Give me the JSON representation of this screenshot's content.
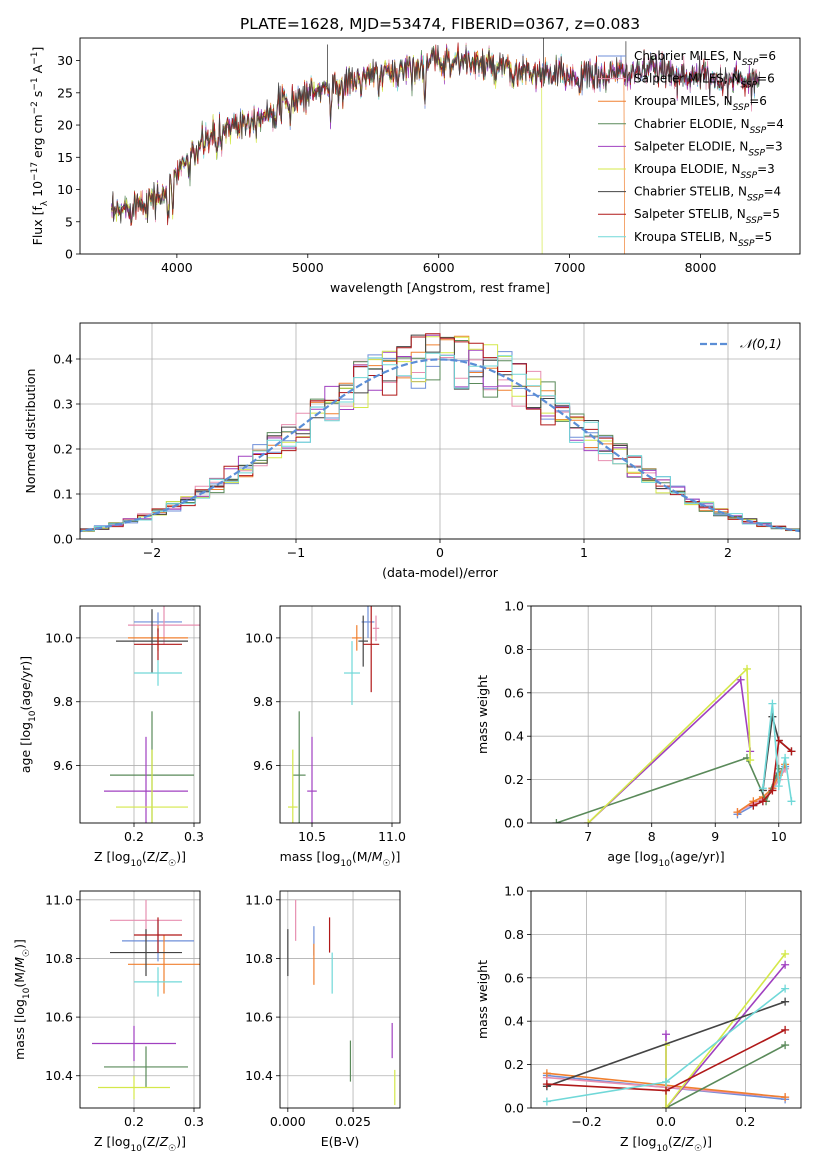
{
  "figure_title": "PLATE=1628, MJD=53474, FIBERID=0367, z=0.083",
  "chart_data": [
    {
      "id": "spectrum",
      "type": "line",
      "title": "PLATE=1628, MJD=53474, FIBERID=0367, z=0.083",
      "xlabel": "wavelength [Angstrom, rest frame]",
      "ylabel": "Flux [f_λ 10^-17 erg cm^-2 s^-1 A^-1]",
      "xlim": [
        3260,
        8760
      ],
      "ylim": [
        0,
        33.5
      ],
      "xticks": [
        4000,
        5000,
        6000,
        7000,
        8000
      ],
      "yticks": [
        0,
        5,
        10,
        15,
        20,
        25,
        30
      ],
      "grid": false,
      "legend": "top-right",
      "series": [
        {
          "name": "Chabrier MILES, N_SSP=6",
          "color": "#6f8fd9"
        },
        {
          "name": "Salpeter MILES, N_SSP=6",
          "color": "#e78fb0"
        },
        {
          "name": "Kroupa MILES, N_SSP=6",
          "color": "#f08030"
        },
        {
          "name": "Chabrier ELODIE, N_SSP=4",
          "color": "#5a8a5a"
        },
        {
          "name": "Salpeter ELODIE, N_SSP=3",
          "color": "#a040c0"
        },
        {
          "name": "Kroupa ELODIE, N_SSP=3",
          "color": "#d4e84a"
        },
        {
          "name": "Chabrier STELIB, N_SSP=4",
          "color": "#444444"
        },
        {
          "name": "Salpeter STELIB, N_SSP=5",
          "color": "#b01818"
        },
        {
          "name": "Kroupa STELIB, N_SSP=5",
          "color": "#70d8d8"
        }
      ],
      "continuum": {
        "x": [
          3500,
          3600,
          3700,
          3800,
          3900,
          3950,
          4000,
          4100,
          4200,
          4300,
          4400,
          4600,
          4800,
          5000,
          5200,
          5400,
          5600,
          5800,
          6000,
          6200,
          6400,
          6600,
          6800,
          7000,
          7200,
          7400,
          7600,
          7800,
          8000,
          8200,
          8400
        ],
        "y": [
          6,
          7,
          8,
          8.5,
          9,
          11,
          13,
          15,
          17,
          19,
          20,
          21,
          23,
          25,
          26,
          27,
          28,
          29,
          30,
          30,
          29,
          28,
          28,
          27.5,
          27.5,
          28,
          28.5,
          28,
          27.5,
          27,
          27
        ]
      },
      "absorption_features": [
        {
          "x": 3934,
          "depth": 6
        },
        {
          "x": 3969,
          "depth": 5
        },
        {
          "x": 4101,
          "depth": 3
        },
        {
          "x": 4304,
          "depth": 4
        },
        {
          "x": 4340,
          "depth": 3
        },
        {
          "x": 4861,
          "depth": 3
        },
        {
          "x": 5175,
          "depth": 4
        },
        {
          "x": 5270,
          "depth": 2
        },
        {
          "x": 5893,
          "depth": 6
        },
        {
          "x": 6563,
          "depth": 2
        },
        {
          "x": 6870,
          "depth": 2
        }
      ]
    },
    {
      "id": "residuals",
      "type": "bar",
      "xlabel": "(data-model)/error",
      "ylabel": "Normed distribution",
      "xlim": [
        -2.5,
        2.5
      ],
      "ylim": [
        0,
        0.48
      ],
      "xticks": [
        -2,
        -1,
        0,
        1,
        2
      ],
      "yticks": [
        0.0,
        0.1,
        0.2,
        0.3,
        0.4
      ],
      "grid": true,
      "legend": "top-right",
      "gaussian_label": "𝒩(0,1)",
      "gaussian": {
        "mu": 0,
        "sigma": 1,
        "color": "#5b8ed6"
      },
      "bin_width": 0.1,
      "series_colors": [
        "#6f8fd9",
        "#e78fb0",
        "#f08030",
        "#5a8a5a",
        "#a040c0",
        "#d4e84a",
        "#444444",
        "#b01818",
        "#70d8d8"
      ]
    },
    {
      "id": "age-vs-Z",
      "type": "scatter",
      "xlabel": "Z [log10(Z/Z☉)]",
      "ylabel": "age [log10(age/yr)]",
      "xlim": [
        0.11,
        0.31
      ],
      "ylim": [
        9.42,
        10.1
      ],
      "xticks": [
        0.2,
        0.3
      ],
      "yticks": [
        9.6,
        9.8,
        10.0
      ],
      "grid": true,
      "points": [
        {
          "x": 0.24,
          "y": 10.05,
          "xerr": 0.04,
          "yerr": 0.03,
          "color": "#6f8fd9"
        },
        {
          "x": 0.25,
          "y": 10.04,
          "xerr": 0.06,
          "yerr": 0.06,
          "color": "#e78fb0"
        },
        {
          "x": 0.24,
          "y": 10.0,
          "xerr": 0.05,
          "yerr": 0.04,
          "color": "#f08030"
        },
        {
          "x": 0.23,
          "y": 9.57,
          "xerr": 0.07,
          "yerr": 0.2,
          "color": "#5a8a5a"
        },
        {
          "x": 0.22,
          "y": 9.52,
          "xerr": 0.07,
          "yerr": 0.17,
          "color": "#a040c0"
        },
        {
          "x": 0.23,
          "y": 9.47,
          "xerr": 0.06,
          "yerr": 0.18,
          "color": "#d4e84a"
        },
        {
          "x": 0.23,
          "y": 9.99,
          "xerr": 0.06,
          "yerr": 0.1,
          "color": "#444444"
        },
        {
          "x": 0.24,
          "y": 9.98,
          "xerr": 0.04,
          "yerr": 0.05,
          "color": "#b01818"
        },
        {
          "x": 0.24,
          "y": 9.89,
          "xerr": 0.04,
          "yerr": 0.04,
          "color": "#70d8d8"
        }
      ]
    },
    {
      "id": "age-vs-mass",
      "type": "scatter",
      "xlabel": "mass [log10(M/M☉)]",
      "ylabel": "",
      "xlim": [
        10.3,
        11.05
      ],
      "ylim": [
        9.42,
        10.1
      ],
      "xticks": [
        10.5,
        11.0
      ],
      "yticks": [
        9.6,
        9.8,
        10.0
      ],
      "grid": true,
      "points": [
        {
          "x": 10.85,
          "y": 10.05,
          "xerr": 0.04,
          "yerr": 0.05,
          "color": "#6f8fd9"
        },
        {
          "x": 10.9,
          "y": 10.03,
          "xerr": 0.02,
          "yerr": 0.04,
          "color": "#e78fb0"
        },
        {
          "x": 10.78,
          "y": 10.0,
          "xerr": 0.03,
          "yerr": 0.04,
          "color": "#f08030"
        },
        {
          "x": 10.42,
          "y": 9.57,
          "xerr": 0.04,
          "yerr": 0.2,
          "color": "#5a8a5a"
        },
        {
          "x": 10.5,
          "y": 9.52,
          "xerr": 0.03,
          "yerr": 0.17,
          "color": "#a040c0"
        },
        {
          "x": 10.38,
          "y": 9.47,
          "xerr": 0.03,
          "yerr": 0.18,
          "color": "#d4e84a"
        },
        {
          "x": 10.82,
          "y": 9.99,
          "xerr": 0.03,
          "yerr": 0.08,
          "color": "#444444"
        },
        {
          "x": 10.87,
          "y": 9.98,
          "xerr": 0.05,
          "yerr": 0.15,
          "color": "#b01818"
        },
        {
          "x": 10.75,
          "y": 9.89,
          "xerr": 0.05,
          "yerr": 0.1,
          "color": "#70d8d8"
        }
      ]
    },
    {
      "id": "mass-weight-vs-age",
      "type": "line",
      "xlabel": "age [log10(age/yr)]",
      "ylabel": "mass weight",
      "xlim": [
        6.1,
        10.35
      ],
      "ylim": [
        0,
        1
      ],
      "xticks": [
        7,
        8,
        9,
        10
      ],
      "yticks": [
        0.0,
        0.2,
        0.4,
        0.6,
        0.8,
        1.0
      ],
      "grid": true,
      "series": [
        {
          "color": "#6f8fd9",
          "x": [
            9.35,
            9.6,
            9.75,
            9.9,
            10.0,
            10.1
          ],
          "y": [
            0.04,
            0.08,
            0.1,
            0.16,
            0.23,
            0.26
          ]
        },
        {
          "color": "#e78fb0",
          "x": [
            9.35,
            9.6,
            9.75,
            9.9,
            10.0,
            10.1
          ],
          "y": [
            0.05,
            0.09,
            0.11,
            0.15,
            0.2,
            0.25
          ]
        },
        {
          "color": "#f08030",
          "x": [
            9.35,
            9.6,
            9.75,
            9.9,
            10.0,
            10.1
          ],
          "y": [
            0.05,
            0.1,
            0.12,
            0.16,
            0.22,
            0.27
          ]
        },
        {
          "color": "#5a8a5a",
          "x": [
            6.5,
            9.5,
            9.8,
            10.0
          ],
          "y": [
            0.0,
            0.3,
            0.1,
            0.25
          ]
        },
        {
          "color": "#a040c0",
          "x": [
            7.0,
            9.4,
            9.55
          ],
          "y": [
            0.0,
            0.66,
            0.33
          ]
        },
        {
          "color": "#d4e84a",
          "x": [
            7.0,
            9.5,
            9.55
          ],
          "y": [
            0.0,
            0.71,
            0.29
          ]
        },
        {
          "color": "#444444",
          "x": [
            9.75,
            9.9,
            10.0,
            10.2
          ],
          "y": [
            0.15,
            0.49,
            0.38,
            0.33
          ]
        },
        {
          "color": "#b01818",
          "x": [
            9.6,
            9.75,
            9.9,
            10.0,
            10.2
          ],
          "y": [
            0.08,
            0.1,
            0.15,
            0.38,
            0.33
          ]
        },
        {
          "color": "#70d8d8",
          "x": [
            9.75,
            9.9,
            10.0,
            10.1,
            10.2
          ],
          "y": [
            0.16,
            0.55,
            0.17,
            0.3,
            0.1
          ]
        }
      ]
    },
    {
      "id": "mass-vs-Z",
      "type": "scatter",
      "xlabel": "Z [log10(Z/Z☉)]",
      "ylabel": "mass [log10(M/M☉)]",
      "xlim": [
        0.11,
        0.31
      ],
      "ylim": [
        10.29,
        11.03
      ],
      "xticks": [
        0.2,
        0.3
      ],
      "yticks": [
        10.4,
        10.6,
        10.8,
        11.0
      ],
      "grid": true,
      "points": [
        {
          "x": 0.24,
          "y": 10.86,
          "xerr": 0.06,
          "yerr": 0.07,
          "color": "#6f8fd9"
        },
        {
          "x": 0.22,
          "y": 10.93,
          "xerr": 0.06,
          "yerr": 0.07,
          "color": "#e78fb0"
        },
        {
          "x": 0.25,
          "y": 10.78,
          "xerr": 0.06,
          "yerr": 0.1,
          "color": "#f08030"
        },
        {
          "x": 0.22,
          "y": 10.43,
          "xerr": 0.07,
          "yerr": 0.07,
          "color": "#5a8a5a"
        },
        {
          "x": 0.2,
          "y": 10.51,
          "xerr": 0.07,
          "yerr": 0.06,
          "color": "#a040c0"
        },
        {
          "x": 0.2,
          "y": 10.36,
          "xerr": 0.06,
          "yerr": 0.04,
          "color": "#d4e84a"
        },
        {
          "x": 0.22,
          "y": 10.82,
          "xerr": 0.06,
          "yerr": 0.08,
          "color": "#444444"
        },
        {
          "x": 0.24,
          "y": 10.88,
          "xerr": 0.04,
          "yerr": 0.06,
          "color": "#b01818"
        },
        {
          "x": 0.24,
          "y": 10.72,
          "xerr": 0.04,
          "yerr": 0.05,
          "color": "#70d8d8"
        }
      ]
    },
    {
      "id": "mass-vs-EBV",
      "type": "scatter",
      "xlabel": "E(B-V)",
      "ylabel": "",
      "xlim": [
        -0.003,
        0.043
      ],
      "ylim": [
        10.29,
        11.03
      ],
      "xticks": [
        0.0,
        0.025
      ],
      "yticks": [
        10.4,
        10.6,
        10.8,
        11.0
      ],
      "grid": true,
      "points": [
        {
          "x": 0.01,
          "y": 10.86,
          "yerr": 0.05,
          "color": "#6f8fd9"
        },
        {
          "x": 0.003,
          "y": 10.93,
          "yerr": 0.07,
          "color": "#e78fb0"
        },
        {
          "x": 0.01,
          "y": 10.78,
          "yerr": 0.07,
          "color": "#f08030"
        },
        {
          "x": 0.024,
          "y": 10.45,
          "yerr": 0.07,
          "color": "#5a8a5a"
        },
        {
          "x": 0.04,
          "y": 10.52,
          "yerr": 0.06,
          "color": "#a040c0"
        },
        {
          "x": 0.041,
          "y": 10.36,
          "yerr": 0.06,
          "color": "#d4e84a"
        },
        {
          "x": 0.0,
          "y": 10.82,
          "yerr": 0.08,
          "color": "#444444"
        },
        {
          "x": 0.016,
          "y": 10.88,
          "yerr": 0.06,
          "color": "#b01818"
        },
        {
          "x": 0.017,
          "y": 10.75,
          "yerr": 0.07,
          "color": "#70d8d8"
        }
      ]
    },
    {
      "id": "mass-weight-vs-Z",
      "type": "line",
      "xlabel": "Z [log10(Z/Z☉)]",
      "ylabel": "mass weight",
      "xlim": [
        -0.34,
        0.34
      ],
      "ylim": [
        0,
        1
      ],
      "xticks": [
        -0.2,
        0.0,
        0.2
      ],
      "yticks": [
        0.0,
        0.2,
        0.4,
        0.6,
        0.8,
        1.0
      ],
      "grid": true,
      "series": [
        {
          "color": "#6f8fd9",
          "x": [
            -0.3,
            0.3
          ],
          "y": [
            0.15,
            0.04
          ]
        },
        {
          "color": "#e78fb0",
          "x": [
            -0.3,
            0.3
          ],
          "y": [
            0.14,
            0.05
          ]
        },
        {
          "color": "#f08030",
          "x": [
            -0.3,
            0.3
          ],
          "y": [
            0.16,
            0.05
          ]
        },
        {
          "color": "#5a8a5a",
          "x": [
            0.0,
            0.3
          ],
          "y": [
            0.0,
            0.29
          ]
        },
        {
          "color": "#a040c0",
          "x": [
            0.0,
            0.0,
            0.3
          ],
          "y": [
            0.34,
            0.0,
            0.66
          ]
        },
        {
          "color": "#d4e84a",
          "x": [
            0.0,
            0.0,
            0.3
          ],
          "y": [
            0.29,
            0.0,
            0.71
          ]
        },
        {
          "color": "#444444",
          "x": [
            -0.3,
            0.3
          ],
          "y": [
            0.1,
            0.49
          ]
        },
        {
          "color": "#b01818",
          "x": [
            -0.3,
            0.0,
            0.3
          ],
          "y": [
            0.11,
            0.08,
            0.36
          ]
        },
        {
          "color": "#70d8d8",
          "x": [
            -0.3,
            0.0,
            0.3
          ],
          "y": [
            0.03,
            0.12,
            0.55
          ]
        }
      ]
    }
  ]
}
